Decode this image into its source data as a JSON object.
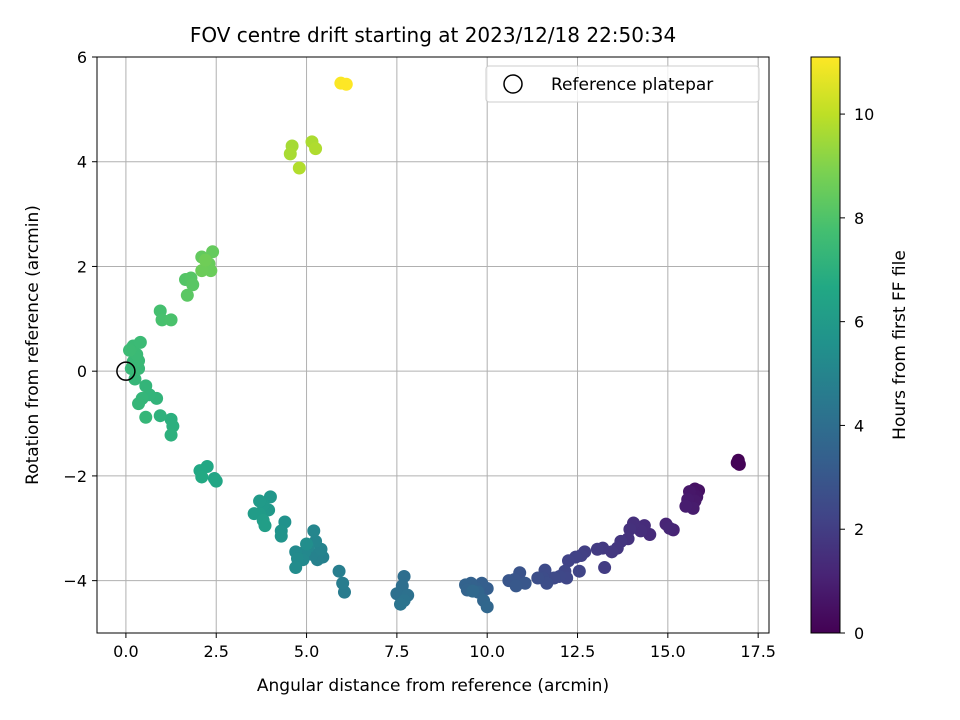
{
  "chart_data": {
    "type": "scatter",
    "title": "FOV centre drift starting at 2023/12/18 22:50:34",
    "xlabel": "Angular distance from reference (arcmin)",
    "ylabel": "Rotation from reference (arcmin)",
    "xlim": [
      -0.8,
      17.8
    ],
    "ylim": [
      -5,
      6
    ],
    "xticks": [
      0,
      2.5,
      5,
      7.5,
      10,
      12.5,
      15,
      17.5
    ],
    "xtick_labels": [
      "0.0",
      "2.5",
      "5.0",
      "7.5",
      "10.0",
      "12.5",
      "15.0",
      "17.5"
    ],
    "yticks": [
      -4,
      -2,
      0,
      2,
      4,
      6
    ],
    "ytick_labels": [
      "−4",
      "−2",
      "0",
      "2",
      "4",
      "6"
    ],
    "grid": true,
    "legend": {
      "position": "top-right",
      "entries": [
        "Reference platepar"
      ]
    },
    "reference_point": {
      "x": 0,
      "y": 0
    },
    "colorbar": {
      "label": "Hours from first FF file",
      "colormap": "viridis",
      "range": [
        0,
        11.1
      ],
      "ticks": [
        0,
        2,
        4,
        6,
        8,
        10
      ],
      "tick_labels": [
        "0",
        "2",
        "4",
        "6",
        "8",
        "10"
      ]
    },
    "points": [
      {
        "x": 16.95,
        "y": -1.7,
        "c": 0.05
      },
      {
        "x": 16.92,
        "y": -1.75,
        "c": 0.08
      },
      {
        "x": 16.98,
        "y": -1.78,
        "c": 0.1
      },
      {
        "x": 15.85,
        "y": -2.28,
        "c": 0.5
      },
      {
        "x": 15.75,
        "y": -2.25,
        "c": 0.55
      },
      {
        "x": 15.7,
        "y": -2.32,
        "c": 0.6
      },
      {
        "x": 15.8,
        "y": -2.4,
        "c": 0.65
      },
      {
        "x": 15.6,
        "y": -2.3,
        "c": 0.7
      },
      {
        "x": 15.75,
        "y": -2.48,
        "c": 0.75
      },
      {
        "x": 15.55,
        "y": -2.45,
        "c": 0.8
      },
      {
        "x": 15.7,
        "y": -2.62,
        "c": 0.85
      },
      {
        "x": 15.5,
        "y": -2.58,
        "c": 0.9
      },
      {
        "x": 15.15,
        "y": -3.03,
        "c": 1.1
      },
      {
        "x": 14.95,
        "y": -2.92,
        "c": 1.15
      },
      {
        "x": 15.05,
        "y": -3.0,
        "c": 1.2
      },
      {
        "x": 14.5,
        "y": -3.12,
        "c": 1.35
      },
      {
        "x": 14.35,
        "y": -2.95,
        "c": 1.4
      },
      {
        "x": 14.25,
        "y": -3.05,
        "c": 1.45
      },
      {
        "x": 14.05,
        "y": -2.9,
        "c": 1.5
      },
      {
        "x": 13.95,
        "y": -3.02,
        "c": 1.55
      },
      {
        "x": 13.9,
        "y": -3.2,
        "c": 1.6
      },
      {
        "x": 13.7,
        "y": -3.25,
        "c": 1.7
      },
      {
        "x": 13.6,
        "y": -3.38,
        "c": 1.75
      },
      {
        "x": 13.45,
        "y": -3.45,
        "c": 1.8
      },
      {
        "x": 13.2,
        "y": -3.38,
        "c": 1.85
      },
      {
        "x": 13.05,
        "y": -3.4,
        "c": 1.9
      },
      {
        "x": 13.25,
        "y": -3.75,
        "c": 1.95
      },
      {
        "x": 12.7,
        "y": -3.45,
        "c": 2.05
      },
      {
        "x": 12.6,
        "y": -3.52,
        "c": 2.1
      },
      {
        "x": 12.45,
        "y": -3.55,
        "c": 2.15
      },
      {
        "x": 12.25,
        "y": -3.62,
        "c": 2.2
      },
      {
        "x": 12.55,
        "y": -3.82,
        "c": 2.25
      },
      {
        "x": 12.15,
        "y": -3.82,
        "c": 2.3
      },
      {
        "x": 12.2,
        "y": -3.95,
        "c": 2.35
      },
      {
        "x": 12.0,
        "y": -3.92,
        "c": 2.4
      },
      {
        "x": 11.85,
        "y": -3.95,
        "c": 2.45
      },
      {
        "x": 11.6,
        "y": -3.8,
        "c": 2.5
      },
      {
        "x": 11.55,
        "y": -3.95,
        "c": 2.55
      },
      {
        "x": 11.65,
        "y": -4.05,
        "c": 2.6
      },
      {
        "x": 11.4,
        "y": -3.95,
        "c": 2.65
      },
      {
        "x": 10.9,
        "y": -3.85,
        "c": 2.85
      },
      {
        "x": 10.75,
        "y": -3.98,
        "c": 2.9
      },
      {
        "x": 10.6,
        "y": -4.0,
        "c": 2.95
      },
      {
        "x": 11.05,
        "y": -4.05,
        "c": 3.0
      },
      {
        "x": 10.8,
        "y": -4.1,
        "c": 3.05
      },
      {
        "x": 10.0,
        "y": -4.15,
        "c": 3.3
      },
      {
        "x": 9.85,
        "y": -4.05,
        "c": 3.35
      },
      {
        "x": 9.7,
        "y": -4.15,
        "c": 3.4
      },
      {
        "x": 9.55,
        "y": -4.05,
        "c": 3.45
      },
      {
        "x": 9.4,
        "y": -4.08,
        "c": 3.5
      },
      {
        "x": 9.45,
        "y": -4.18,
        "c": 3.55
      },
      {
        "x": 9.75,
        "y": -4.22,
        "c": 3.6
      },
      {
        "x": 9.9,
        "y": -4.38,
        "c": 3.65
      },
      {
        "x": 10.0,
        "y": -4.5,
        "c": 3.7
      },
      {
        "x": 9.6,
        "y": -4.2,
        "c": 3.75
      },
      {
        "x": 7.7,
        "y": -3.92,
        "c": 4.0
      },
      {
        "x": 7.65,
        "y": -4.1,
        "c": 4.05
      },
      {
        "x": 7.5,
        "y": -4.25,
        "c": 4.1
      },
      {
        "x": 7.8,
        "y": -4.28,
        "c": 4.15
      },
      {
        "x": 7.7,
        "y": -4.38,
        "c": 4.2
      },
      {
        "x": 7.6,
        "y": -4.45,
        "c": 4.25
      },
      {
        "x": 6.05,
        "y": -4.22,
        "c": 4.6
      },
      {
        "x": 6.0,
        "y": -4.05,
        "c": 4.65
      },
      {
        "x": 5.9,
        "y": -3.82,
        "c": 4.7
      },
      {
        "x": 5.45,
        "y": -3.55,
        "c": 4.8
      },
      {
        "x": 5.3,
        "y": -3.6,
        "c": 4.85
      },
      {
        "x": 5.15,
        "y": -3.5,
        "c": 4.9
      },
      {
        "x": 5.4,
        "y": -3.4,
        "c": 4.95
      },
      {
        "x": 5.25,
        "y": -3.25,
        "c": 5.0
      },
      {
        "x": 5.2,
        "y": -3.05,
        "c": 5.05
      },
      {
        "x": 5.05,
        "y": -3.35,
        "c": 5.1
      },
      {
        "x": 4.95,
        "y": -3.45,
        "c": 5.15
      },
      {
        "x": 4.9,
        "y": -3.6,
        "c": 5.2
      },
      {
        "x": 4.7,
        "y": -3.45,
        "c": 5.25
      },
      {
        "x": 4.75,
        "y": -3.58,
        "c": 5.3
      },
      {
        "x": 4.7,
        "y": -3.75,
        "c": 5.35
      },
      {
        "x": 5.0,
        "y": -3.3,
        "c": 5.4
      },
      {
        "x": 4.4,
        "y": -2.88,
        "c": 5.6
      },
      {
        "x": 4.3,
        "y": -3.05,
        "c": 5.65
      },
      {
        "x": 4.3,
        "y": -3.15,
        "c": 5.7
      },
      {
        "x": 4.0,
        "y": -2.4,
        "c": 5.85
      },
      {
        "x": 3.95,
        "y": -2.65,
        "c": 5.9
      },
      {
        "x": 3.8,
        "y": -2.55,
        "c": 5.95
      },
      {
        "x": 3.7,
        "y": -2.48,
        "c": 6.0
      },
      {
        "x": 3.7,
        "y": -2.72,
        "c": 6.05
      },
      {
        "x": 3.55,
        "y": -2.72,
        "c": 6.1
      },
      {
        "x": 3.8,
        "y": -2.85,
        "c": 6.15
      },
      {
        "x": 3.85,
        "y": -2.95,
        "c": 6.2
      },
      {
        "x": 2.45,
        "y": -2.05,
        "c": 6.5
      },
      {
        "x": 2.5,
        "y": -2.1,
        "c": 6.55
      },
      {
        "x": 2.25,
        "y": -1.82,
        "c": 6.6
      },
      {
        "x": 2.05,
        "y": -1.9,
        "c": 6.65
      },
      {
        "x": 2.1,
        "y": -2.02,
        "c": 6.7
      },
      {
        "x": 1.25,
        "y": -0.92,
        "c": 7.0
      },
      {
        "x": 1.3,
        "y": -1.05,
        "c": 7.02
      },
      {
        "x": 1.25,
        "y": -1.22,
        "c": 7.05
      },
      {
        "x": 0.95,
        "y": -0.85,
        "c": 7.1
      },
      {
        "x": 0.85,
        "y": -0.52,
        "c": 7.2
      },
      {
        "x": 0.65,
        "y": -0.45,
        "c": 7.22
      },
      {
        "x": 0.55,
        "y": -0.28,
        "c": 7.25
      },
      {
        "x": 0.45,
        "y": -0.52,
        "c": 7.28
      },
      {
        "x": 0.35,
        "y": -0.62,
        "c": 7.3
      },
      {
        "x": 0.55,
        "y": -0.88,
        "c": 7.32
      },
      {
        "x": 0.25,
        "y": -0.15,
        "c": 7.35
      },
      {
        "x": 0.15,
        "y": 0.05,
        "c": 7.38
      },
      {
        "x": 0.35,
        "y": 0.05,
        "c": 7.4
      },
      {
        "x": 0.2,
        "y": 0.18,
        "c": 7.42
      },
      {
        "x": 0.35,
        "y": 0.2,
        "c": 7.45
      },
      {
        "x": 0.3,
        "y": 0.32,
        "c": 7.48
      },
      {
        "x": 0.2,
        "y": 0.48,
        "c": 7.5
      },
      {
        "x": 0.4,
        "y": 0.55,
        "c": 7.52
      },
      {
        "x": 0.1,
        "y": 0.4,
        "c": 7.55
      },
      {
        "x": 0.95,
        "y": 1.15,
        "c": 7.8
      },
      {
        "x": 1.0,
        "y": 0.98,
        "c": 7.85
      },
      {
        "x": 1.25,
        "y": 0.98,
        "c": 7.9
      },
      {
        "x": 1.65,
        "y": 1.75,
        "c": 8.1
      },
      {
        "x": 1.8,
        "y": 1.78,
        "c": 8.15
      },
      {
        "x": 1.85,
        "y": 1.65,
        "c": 8.2
      },
      {
        "x": 1.7,
        "y": 1.45,
        "c": 8.25
      },
      {
        "x": 2.1,
        "y": 2.18,
        "c": 8.4
      },
      {
        "x": 2.4,
        "y": 2.28,
        "c": 8.45
      },
      {
        "x": 2.3,
        "y": 2.05,
        "c": 8.5
      },
      {
        "x": 2.35,
        "y": 1.92,
        "c": 8.55
      },
      {
        "x": 2.1,
        "y": 1.92,
        "c": 8.6
      },
      {
        "x": 2.2,
        "y": 2.12,
        "c": 8.65
      },
      {
        "x": 4.6,
        "y": 4.3,
        "c": 9.6
      },
      {
        "x": 4.55,
        "y": 4.15,
        "c": 9.65
      },
      {
        "x": 5.15,
        "y": 4.38,
        "c": 9.7
      },
      {
        "x": 5.25,
        "y": 4.25,
        "c": 9.75
      },
      {
        "x": 4.8,
        "y": 3.88,
        "c": 9.8
      },
      {
        "x": 5.95,
        "y": 5.5,
        "c": 11.05
      },
      {
        "x": 6.1,
        "y": 5.48,
        "c": 11.1
      }
    ]
  }
}
